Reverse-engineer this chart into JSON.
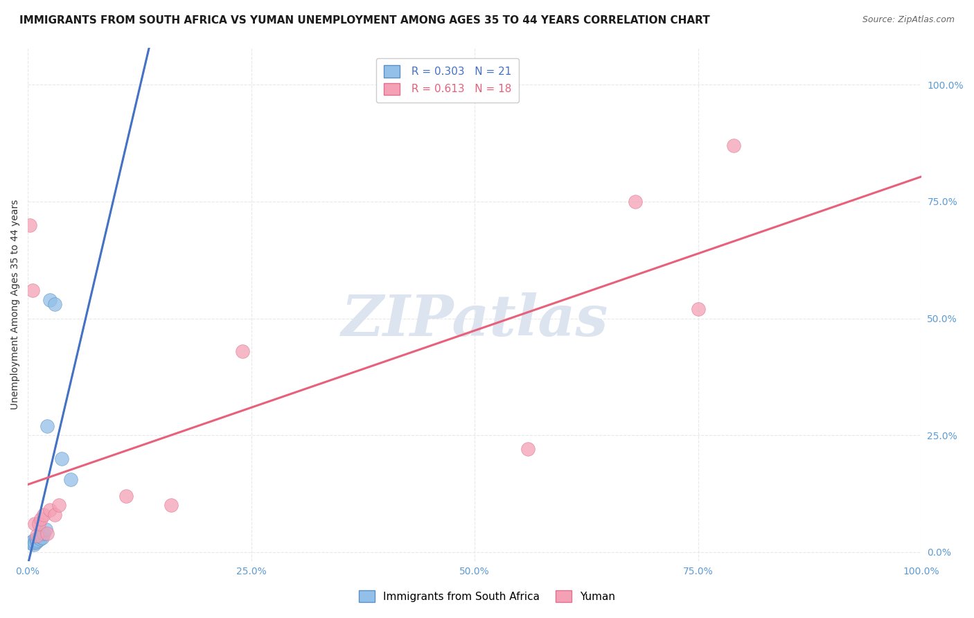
{
  "title": "IMMIGRANTS FROM SOUTH AFRICA VS YUMAN UNEMPLOYMENT AMONG AGES 35 TO 44 YEARS CORRELATION CHART",
  "source": "Source: ZipAtlas.com",
  "ylabel": "Unemployment Among Ages 35 to 44 years",
  "xlim": [
    0.0,
    1.0
  ],
  "ylim": [
    -0.02,
    1.08
  ],
  "xticks": [
    0.0,
    0.25,
    0.5,
    0.75,
    1.0
  ],
  "xtick_labels": [
    "0.0%",
    "25.0%",
    "50.0%",
    "75.0%",
    "100.0%"
  ],
  "yticks": [
    0.0,
    0.25,
    0.5,
    0.75,
    1.0
  ],
  "ytick_labels": [
    "0.0%",
    "25.0%",
    "50.0%",
    "75.0%",
    "100.0%"
  ],
  "blue_R": 0.303,
  "blue_N": 21,
  "pink_R": 0.613,
  "pink_N": 18,
  "blue_color": "#92c0e8",
  "pink_color": "#f4a0b5",
  "blue_edge": "#5a8fc4",
  "pink_edge": "#e07090",
  "blue_label": "Immigrants from South Africa",
  "pink_label": "Yuman",
  "blue_line_color": "#4472c4",
  "pink_line_color": "#e8607a",
  "dash_line_color": "#b0b8c8",
  "background_color": "#ffffff",
  "grid_color": "#e8e8e8",
  "title_fontsize": 11,
  "axis_label_fontsize": 10,
  "tick_fontsize": 10,
  "legend_fontsize": 11,
  "watermark_text": "ZIPatlas",
  "watermark_color": "#dce4f0",
  "watermark_fontsize": 60,
  "blue_scatter_x": [
    0.003,
    0.004,
    0.005,
    0.006,
    0.007,
    0.008,
    0.009,
    0.01,
    0.011,
    0.012,
    0.013,
    0.014,
    0.015,
    0.016,
    0.018,
    0.02,
    0.022,
    0.025,
    0.03,
    0.038,
    0.048
  ],
  "blue_scatter_y": [
    0.02,
    0.018,
    0.022,
    0.025,
    0.015,
    0.02,
    0.028,
    0.022,
    0.025,
    0.03,
    0.035,
    0.028,
    0.032,
    0.03,
    0.04,
    0.048,
    0.27,
    0.54,
    0.53,
    0.2,
    0.155
  ],
  "pink_scatter_x": [
    0.002,
    0.005,
    0.008,
    0.01,
    0.012,
    0.015,
    0.018,
    0.022,
    0.025,
    0.03,
    0.035,
    0.11,
    0.16,
    0.24,
    0.56,
    0.68,
    0.75,
    0.79
  ],
  "pink_scatter_y": [
    0.7,
    0.56,
    0.06,
    0.035,
    0.06,
    0.07,
    0.08,
    0.04,
    0.09,
    0.08,
    0.1,
    0.12,
    0.1,
    0.43,
    0.22,
    0.75,
    0.52,
    0.87
  ]
}
